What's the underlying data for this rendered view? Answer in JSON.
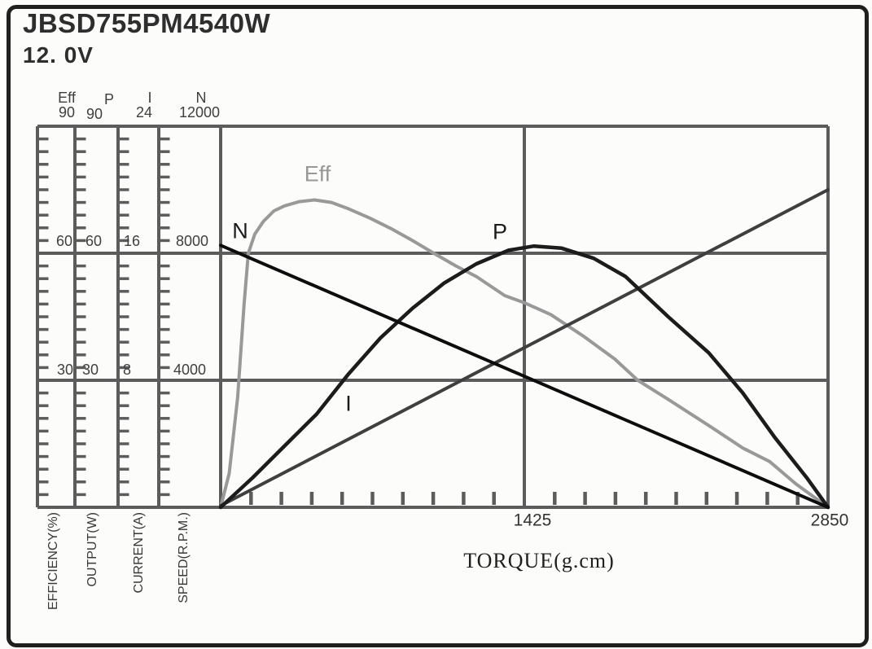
{
  "header": {
    "model": "JBSD755PM4540W",
    "voltage": "12. 0V"
  },
  "axis_headers": {
    "eff_name": "Eff",
    "eff_max": "90",
    "p_name": "P",
    "p_max": "90",
    "i_name": "I",
    "i_max": "24",
    "n_name": "N",
    "n_max": "12000"
  },
  "axis_mid_labels": {
    "eff": "60",
    "p": "60",
    "i": "16",
    "n": "8000"
  },
  "axis_low_labels": {
    "eff": "30",
    "p": "30",
    "i": "8",
    "n": "4000"
  },
  "axis_bottom_labels": {
    "eff": "EFFICIENCY(%)",
    "p": "OUTPUT(W)",
    "i": "CURRENT(A)",
    "n": "SPEED(R.P.M.)"
  },
  "x_axis": {
    "mid_tick": "1425",
    "max_tick": "2850",
    "label": "TORQUE(g.cm)"
  },
  "curve_labels": {
    "eff": "Eff",
    "n": "N",
    "p": "P",
    "i": "I"
  },
  "colors": {
    "grid": "#5c5c5c",
    "speed_curve": "#0d0d0d",
    "current_curve": "#3f3f3f",
    "output_curve": "#1c1c1c",
    "efficiency_curve": "#999999"
  },
  "chart_data": {
    "type": "line",
    "title": "JBSD755PM4540W 12.0V motor performance curves",
    "xlabel": "TORQUE(g.cm)",
    "xlim": [
      0,
      2850
    ],
    "x_tick_labels": [
      1425,
      2850
    ],
    "x_minor_tick_step": 142.5,
    "grid": true,
    "legend_position": "inline-labels",
    "y_axes": [
      {
        "id": "Eff",
        "label": "EFFICIENCY(%)",
        "max": 90,
        "ticks_shown": [
          30,
          60,
          90
        ]
      },
      {
        "id": "P",
        "label": "OUTPUT(W)",
        "max": 90,
        "ticks_shown": [
          30,
          60,
          90
        ]
      },
      {
        "id": "I",
        "label": "CURRENT(A)",
        "max": 24,
        "ticks_shown": [
          8,
          16,
          24
        ]
      },
      {
        "id": "N",
        "label": "SPEED(R.P.M.)",
        "max": 12000,
        "ticks_shown": [
          4000,
          8000,
          12000
        ]
      }
    ],
    "series": [
      {
        "id": "Eff",
        "name": "Eff",
        "axis": "EFFICIENCY(%)",
        "ymax": 90,
        "color": "#999999",
        "width": 4,
        "points": [
          [
            0,
            0
          ],
          [
            40,
            8
          ],
          [
            80,
            26
          ],
          [
            110,
            48
          ],
          [
            130,
            60
          ],
          [
            160,
            64.5
          ],
          [
            200,
            67.5
          ],
          [
            250,
            70
          ],
          [
            300,
            71.2
          ],
          [
            370,
            72.2
          ],
          [
            440,
            72.6
          ],
          [
            520,
            72
          ],
          [
            600,
            70.5
          ],
          [
            700,
            68.3
          ],
          [
            800,
            65.8
          ],
          [
            900,
            63
          ],
          [
            1000,
            60
          ],
          [
            1104,
            57
          ],
          [
            1200,
            54.5
          ],
          [
            1333,
            50
          ],
          [
            1425,
            48.3
          ],
          [
            1550,
            45.5
          ],
          [
            1700,
            40.5
          ],
          [
            1850,
            35
          ],
          [
            1957,
            30
          ],
          [
            2097,
            25.6
          ],
          [
            2300,
            19
          ],
          [
            2450,
            14
          ],
          [
            2576,
            10.8
          ],
          [
            2700,
            5.5
          ],
          [
            2850,
            0
          ]
        ]
      },
      {
        "id": "I",
        "name": "I",
        "axis": "CURRENT(A)",
        "ymax": 24,
        "color": "#3f3f3f",
        "width": 4,
        "points": [
          [
            0,
            0.1
          ],
          [
            1425,
            10.05
          ],
          [
            2850,
            20
          ]
        ]
      },
      {
        "id": "P",
        "name": "P",
        "axis": "OUTPUT(W)",
        "ymax": 90,
        "color": "#1c1c1c",
        "width": 4.5,
        "points": [
          [
            0,
            0
          ],
          [
            150,
            7
          ],
          [
            300,
            14.5
          ],
          [
            450,
            22
          ],
          [
            600,
            31.5
          ],
          [
            750,
            40
          ],
          [
            900,
            47
          ],
          [
            1050,
            53
          ],
          [
            1200,
            57.5
          ],
          [
            1350,
            60.7
          ],
          [
            1470,
            61.7
          ],
          [
            1600,
            61.2
          ],
          [
            1750,
            58.8
          ],
          [
            1900,
            54.5
          ],
          [
            2100,
            45
          ],
          [
            2290,
            36.5
          ],
          [
            2450,
            27
          ],
          [
            2600,
            16.5
          ],
          [
            2750,
            7
          ],
          [
            2850,
            0
          ]
        ]
      },
      {
        "id": "N",
        "name": "N",
        "axis": "SPEED(R.P.M.)",
        "ymax": 12000,
        "color": "#0d0d0d",
        "width": 4,
        "points": [
          [
            0,
            8250
          ],
          [
            1425,
            4125
          ],
          [
            2850,
            0
          ]
        ]
      }
    ]
  }
}
